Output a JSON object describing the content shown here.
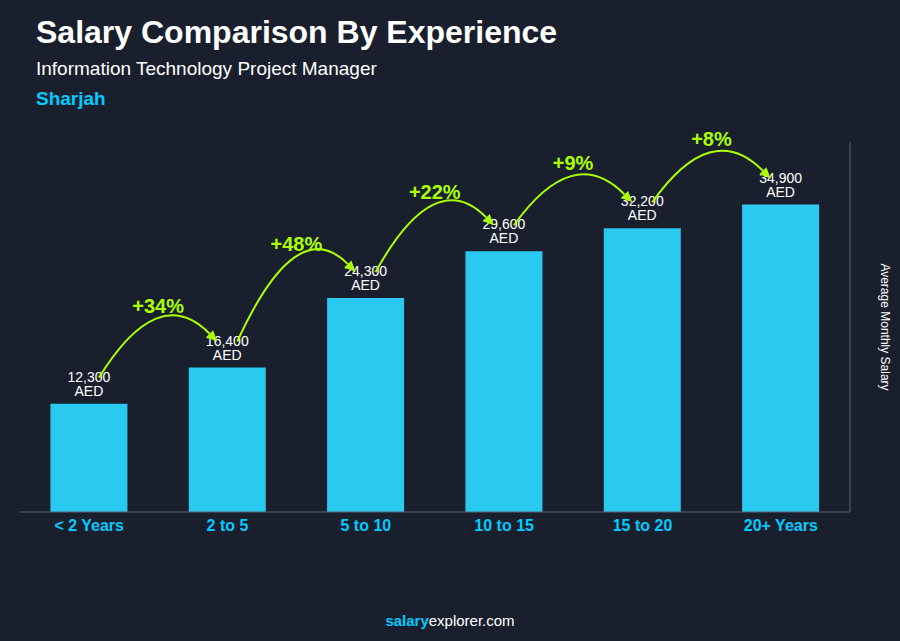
{
  "chart_data": {
    "type": "bar",
    "title": "Salary Comparison By Experience",
    "subtitle": [
      "Information Technology Project Manager",
      "Sharjah"
    ],
    "footer": [
      "salary",
      "explorer.com"
    ],
    "y_label": "Average Monthly Salary",
    "categories": [
      "< 2 Years",
      "2 to 5",
      "5 to 10",
      "10 to 15",
      "15 to 20",
      "20+ Years"
    ],
    "values": [
      12300,
      16400,
      24300,
      29600,
      32200,
      34900
    ],
    "value_labels": [
      "12,300 AED",
      "16,400 AED",
      "24,300 AED",
      "29,600 AED",
      "32,200 AED",
      "34,900 AED"
    ],
    "data_labels": true,
    "annotations": [
      {
        "text": "+34%",
        "from": "< 2 Years",
        "to": "2 to 5"
      },
      {
        "text": "+48%",
        "from": "2 to 5",
        "to": "5 to 10"
      },
      {
        "text": "+22%",
        "from": "5 to 10",
        "to": "10 to 15"
      },
      {
        "text": "+9%",
        "from": "10 to 15",
        "to": "15 to 20"
      },
      {
        "text": "+8%",
        "from": "15 to 20",
        "to": "20+ Years"
      }
    ],
    "color": "#29c9f0",
    "ylim": [
      0,
      42000
    ],
    "grid": false,
    "tick_labels": "x"
  }
}
